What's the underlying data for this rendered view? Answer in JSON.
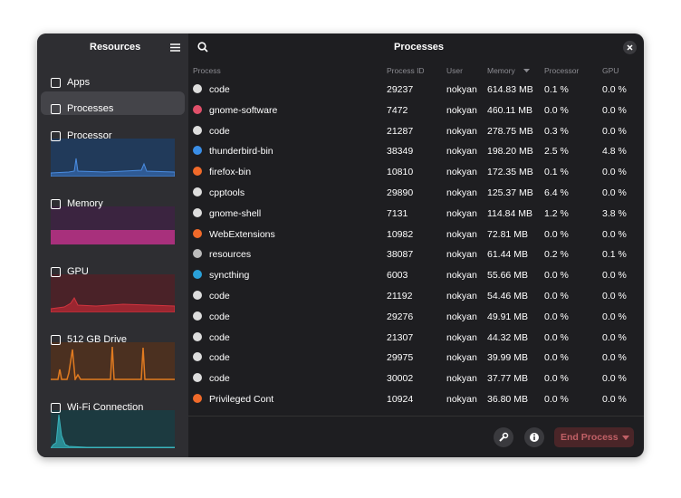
{
  "sidebar": {
    "title": "Resources",
    "items": [
      "Apps",
      "Processes",
      "Processor",
      "Memory",
      "GPU",
      "512 GB Drive",
      "Wi-Fi Connection"
    ]
  },
  "header": {
    "title": "Processes"
  },
  "table": {
    "columns": [
      "Process",
      "Process ID",
      "User",
      "Memory",
      "Processor",
      "GPU"
    ],
    "rows": [
      [
        "code",
        "29237",
        "nokyan",
        "614.83 MB",
        "0.1 %",
        "0.0 %"
      ],
      [
        "gnome-software",
        "7472",
        "nokyan",
        "460.11 MB",
        "0.0 %",
        "0.0 %"
      ],
      [
        "code",
        "21287",
        "nokyan",
        "278.75 MB",
        "0.3 %",
        "0.0 %"
      ],
      [
        "thunderbird-bin",
        "38349",
        "nokyan",
        "198.20 MB",
        "2.5 %",
        "4.8 %"
      ],
      [
        "firefox-bin",
        "10810",
        "nokyan",
        "172.35 MB",
        "0.1 %",
        "0.0 %"
      ],
      [
        "cpptools",
        "29890",
        "nokyan",
        "125.37 MB",
        "6.4 %",
        "0.0 %"
      ],
      [
        "gnome-shell",
        "7131",
        "nokyan",
        "114.84 MB",
        "1.2 %",
        "3.8 %"
      ],
      [
        "WebExtensions",
        "10982",
        "nokyan",
        "72.81 MB",
        "0.0 %",
        "0.0 %"
      ],
      [
        "resources",
        "38087",
        "nokyan",
        "61.44 MB",
        "0.2 %",
        "0.1 %"
      ],
      [
        "syncthing",
        "6003",
        "nokyan",
        "55.66 MB",
        "0.0 %",
        "0.0 %"
      ],
      [
        "code",
        "21192",
        "nokyan",
        "54.46 MB",
        "0.0 %",
        "0.0 %"
      ],
      [
        "code",
        "29276",
        "nokyan",
        "49.91 MB",
        "0.0 %",
        "0.0 %"
      ],
      [
        "code",
        "21307",
        "nokyan",
        "44.32 MB",
        "0.0 %",
        "0.0 %"
      ],
      [
        "code",
        "29975",
        "nokyan",
        "39.99 MB",
        "0.0 %",
        "0.0 %"
      ],
      [
        "code",
        "30002",
        "nokyan",
        "37.77 MB",
        "0.0 %",
        "0.0 %"
      ],
      [
        "Privileged Cont",
        "10924",
        "nokyan",
        "36.80 MB",
        "0.0 %",
        "0.0 %"
      ]
    ]
  },
  "footer": {
    "button": "End Process"
  }
}
